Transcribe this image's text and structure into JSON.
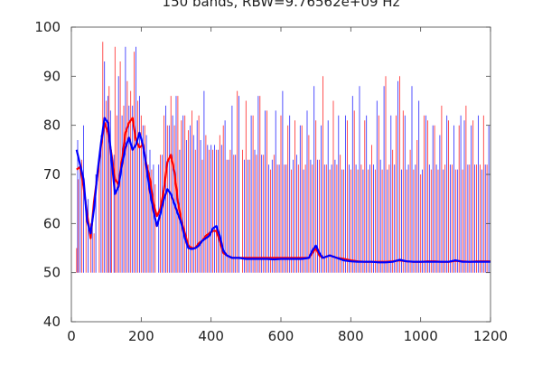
{
  "chart_data": {
    "type": "line",
    "title": "150 bands, RBW=9.76562e+09 Hz",
    "xlabel": "",
    "ylabel": "",
    "xlim": [
      0,
      1200
    ],
    "ylim": [
      40,
      100
    ],
    "x_ticks": [
      0,
      200,
      400,
      600,
      800,
      1000,
      1200
    ],
    "y_ticks": [
      40,
      50,
      60,
      70,
      80,
      90,
      100
    ],
    "grid": false,
    "legend": "none",
    "series": [
      {
        "color": "#ff0000",
        "description": "smoothed trace",
        "x": [
          15,
          25,
          35,
          45,
          55,
          65,
          75,
          85,
          95,
          105,
          115,
          125,
          135,
          145,
          155,
          165,
          175,
          185,
          195,
          205,
          215,
          225,
          235,
          245,
          255,
          265,
          275,
          285,
          295,
          305,
          315,
          325,
          335,
          345,
          355,
          365,
          375,
          385,
          395,
          405,
          415,
          425,
          435,
          445,
          460,
          480,
          500,
          520,
          540,
          560,
          580,
          600,
          620,
          640,
          660,
          680,
          690,
          700,
          710,
          720,
          740,
          760,
          780,
          800,
          820,
          840,
          860,
          880,
          900,
          920,
          940,
          960,
          980,
          1000,
          1020,
          1040,
          1060,
          1080,
          1100,
          1120,
          1140,
          1160,
          1180,
          1200
        ],
        "y": [
          71.0,
          71.5,
          67.5,
          62.0,
          57.0,
          64.5,
          70.0,
          76.0,
          80.5,
          78.5,
          74.0,
          69.0,
          68.0,
          73.0,
          78.5,
          80.5,
          81.5,
          77.0,
          75.5,
          76.0,
          72.0,
          69.0,
          64.0,
          61.5,
          63.0,
          67.0,
          72.5,
          74.0,
          70.5,
          64.5,
          60.5,
          58.0,
          55.5,
          55.0,
          55.0,
          56.0,
          56.5,
          57.5,
          58.0,
          58.5,
          58.5,
          56.5,
          54.0,
          53.5,
          53.0,
          53.0,
          53.0,
          53.0,
          53.0,
          53.0,
          53.0,
          53.0,
          53.0,
          53.0,
          53.0,
          53.0,
          54.0,
          55.0,
          53.5,
          53.0,
          53.5,
          53.0,
          52.8,
          52.5,
          52.3,
          52.2,
          52.2,
          52.2,
          52.2,
          52.3,
          52.5,
          52.3,
          52.2,
          52.2,
          52.3,
          52.3,
          52.2,
          52.2,
          52.4,
          52.3,
          52.2,
          52.3,
          52.3,
          52.3
        ]
      },
      {
        "color": "#0000ff",
        "description": "smoothed trace",
        "x": [
          15,
          25,
          35,
          45,
          55,
          65,
          75,
          85,
          95,
          105,
          115,
          125,
          135,
          145,
          155,
          165,
          175,
          185,
          195,
          205,
          215,
          225,
          235,
          245,
          255,
          265,
          275,
          285,
          295,
          305,
          315,
          325,
          335,
          345,
          355,
          365,
          375,
          385,
          395,
          405,
          415,
          425,
          435,
          445,
          460,
          480,
          500,
          520,
          540,
          560,
          580,
          600,
          620,
          640,
          660,
          680,
          690,
          700,
          710,
          720,
          740,
          760,
          780,
          800,
          820,
          840,
          860,
          880,
          900,
          920,
          940,
          960,
          980,
          1000,
          1020,
          1040,
          1060,
          1080,
          1100,
          1120,
          1140,
          1160,
          1180,
          1200
        ],
        "y": [
          75.0,
          72.0,
          69.0,
          60.5,
          58.0,
          63.0,
          70.5,
          76.5,
          81.5,
          80.5,
          73.0,
          66.0,
          67.5,
          72.0,
          75.5,
          77.5,
          75.0,
          76.0,
          78.5,
          76.0,
          71.5,
          66.5,
          62.5,
          59.5,
          62.0,
          65.0,
          67.0,
          66.0,
          64.0,
          62.0,
          60.0,
          57.0,
          55.0,
          54.8,
          55.0,
          55.5,
          56.5,
          57.0,
          57.5,
          59.0,
          59.5,
          57.5,
          54.5,
          53.5,
          53.0,
          53.0,
          52.8,
          52.8,
          52.8,
          52.8,
          52.7,
          52.8,
          52.8,
          52.8,
          52.8,
          53.0,
          54.5,
          55.5,
          54.0,
          53.0,
          53.5,
          53.0,
          52.5,
          52.3,
          52.2,
          52.2,
          52.2,
          52.1,
          52.1,
          52.2,
          52.6,
          52.3,
          52.2,
          52.2,
          52.2,
          52.2,
          52.2,
          52.2,
          52.5,
          52.2,
          52.2,
          52.2,
          52.2,
          52.2
        ]
      }
    ],
    "spikes": {
      "description": "dense vertical spike lines rising from the trace, one per band",
      "red": {
        "color": "#ff0000",
        "x": [
          15,
          20,
          30,
          42,
          55,
          65,
          80,
          90,
          100,
          108,
          115,
          125,
          130,
          140,
          150,
          160,
          170,
          180,
          190,
          200,
          210,
          220,
          230,
          240,
          255,
          265,
          275,
          285,
          295,
          305,
          315,
          325,
          335,
          345,
          355,
          365,
          375,
          385,
          395,
          405,
          415,
          425,
          435,
          445,
          455,
          465,
          475,
          490,
          500,
          510,
          520,
          530,
          540,
          550,
          560,
          570,
          580,
          590,
          600,
          610,
          620,
          630,
          640,
          650,
          660,
          670,
          680,
          690,
          700,
          710,
          720,
          730,
          740,
          750,
          760,
          770,
          780,
          790,
          800,
          810,
          820,
          830,
          840,
          850,
          860,
          870,
          880,
          890,
          900,
          910,
          920,
          930,
          940,
          950,
          960,
          970,
          980,
          990,
          1000,
          1010,
          1020,
          1030,
          1040,
          1050,
          1060,
          1070,
          1080,
          1090,
          1100,
          1110,
          1120,
          1130,
          1140,
          1150,
          1160,
          1170,
          1180,
          1190
        ],
        "y": [
          55,
          69,
          73,
          65,
          60,
          58,
          72,
          97,
          85,
          88,
          75,
          96,
          82,
          93,
          84,
          89,
          87,
          95,
          85,
          82,
          80,
          72,
          71,
          68,
          74,
          82,
          80,
          86,
          80,
          86,
          81,
          82,
          79,
          83,
          75,
          82,
          73,
          78,
          75,
          75,
          75,
          78,
          80,
          73,
          75,
          74,
          87,
          75,
          85,
          73,
          82,
          74,
          86,
          74,
          83,
          71,
          74,
          72,
          82,
          72,
          80,
          71,
          81,
          72,
          80,
          72,
          78,
          72,
          81,
          73,
          90,
          72,
          71,
          85,
          72,
          74,
          71,
          81,
          71,
          83,
          71,
          72,
          81,
          71,
          76,
          71,
          82,
          71,
          90,
          72,
          75,
          82,
          90,
          83,
          71,
          75,
          71,
          77,
          70,
          82,
          81,
          71,
          80,
          71,
          84,
          72,
          81,
          72,
          71,
          80,
          71,
          84,
          72,
          81,
          72,
          72,
          82,
          72
        ]
      },
      "blue": {
        "color": "#0000ff",
        "x": [
          18,
          25,
          35,
          48,
          60,
          70,
          85,
          95,
          105,
          112,
          122,
          135,
          145,
          155,
          165,
          175,
          185,
          195,
          205,
          215,
          225,
          235,
          250,
          260,
          270,
          280,
          290,
          300,
          310,
          320,
          330,
          340,
          350,
          360,
          370,
          380,
          390,
          400,
          410,
          420,
          430,
          440,
          450,
          460,
          470,
          480,
          495,
          505,
          515,
          525,
          535,
          545,
          555,
          565,
          575,
          585,
          595,
          605,
          615,
          625,
          635,
          645,
          655,
          665,
          675,
          685,
          695,
          705,
          715,
          725,
          735,
          745,
          755,
          765,
          775,
          785,
          795,
          805,
          815,
          825,
          835,
          845,
          855,
          865,
          875,
          885,
          895,
          905,
          915,
          925,
          935,
          945,
          955,
          965,
          975,
          985,
          995,
          1005,
          1015,
          1025,
          1035,
          1045,
          1055,
          1065,
          1075,
          1085,
          1095,
          1105,
          1115,
          1125,
          1135,
          1145,
          1155,
          1165,
          1175,
          1185,
          1195
        ],
        "y": [
          77,
          71,
          80,
          65,
          60,
          70,
          78,
          93,
          86,
          83,
          74,
          90,
          82,
          96,
          84,
          84,
          96,
          86,
          80,
          78,
          75,
          72,
          72,
          74,
          84,
          80,
          82,
          86,
          75,
          82,
          77,
          80,
          78,
          81,
          77,
          87,
          76,
          76,
          76,
          75,
          76,
          81,
          73,
          84,
          74,
          86,
          73,
          73,
          82,
          75,
          86,
          74,
          83,
          72,
          73,
          83,
          72,
          87,
          72,
          82,
          73,
          74,
          80,
          71,
          83,
          73,
          88,
          73,
          80,
          72,
          81,
          72,
          73,
          82,
          71,
          82,
          72,
          86,
          72,
          88,
          71,
          82,
          72,
          72,
          85,
          73,
          88,
          71,
          82,
          72,
          89,
          71,
          82,
          72,
          88,
          72,
          85,
          71,
          82,
          72,
          80,
          72,
          78,
          71,
          82,
          72,
          80,
          71,
          82,
          81,
          72,
          80,
          72,
          82,
          71,
          72,
          80
        ]
      }
    }
  }
}
